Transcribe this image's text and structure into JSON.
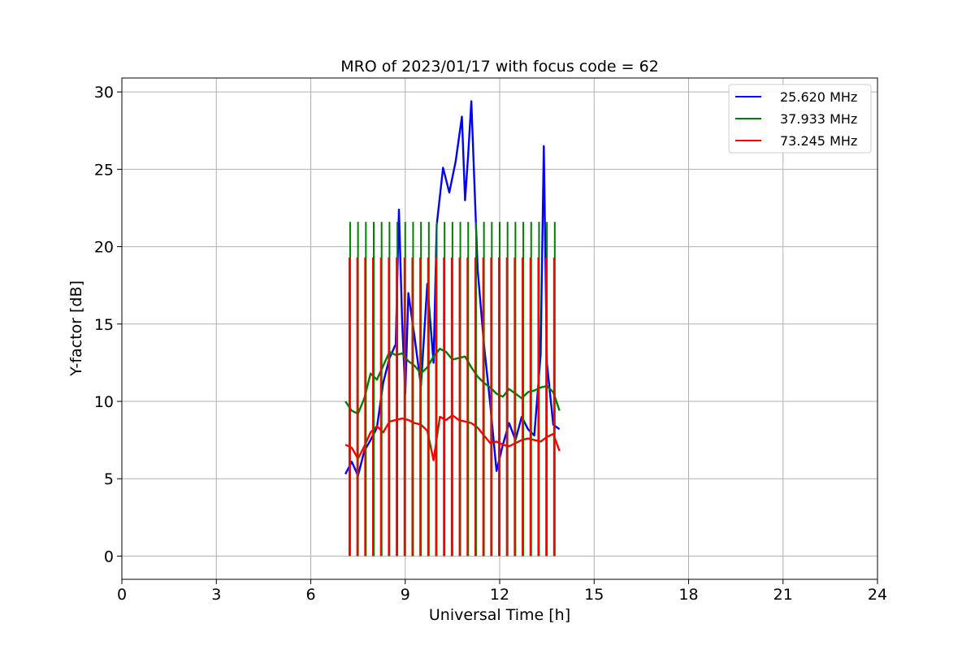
{
  "chart_data": {
    "type": "line",
    "title": "MRO of 2023/01/17 with focus code = 62",
    "xlabel": "Universal Time [h]",
    "ylabel": "Y-factor [dB]",
    "xlim": [
      0,
      24
    ],
    "ylim": [
      -1.5,
      30.9
    ],
    "xticks": [
      0,
      3,
      6,
      9,
      12,
      15,
      18,
      21,
      24
    ],
    "yticks": [
      0,
      5,
      10,
      15,
      20,
      25,
      30
    ],
    "grid": true,
    "legend_position": "top-right",
    "series": [
      {
        "name": "25.620 MHz",
        "color": "#0000ff",
        "x": [
          7.1,
          7.3,
          7.5,
          7.7,
          7.9,
          8.1,
          8.3,
          8.5,
          8.7,
          8.8,
          8.9,
          9.0,
          9.1,
          9.3,
          9.5,
          9.7,
          9.9,
          10.0,
          10.2,
          10.4,
          10.6,
          10.8,
          10.9,
          11.0,
          11.1,
          11.3,
          11.5,
          11.7,
          11.9,
          12.1,
          12.3,
          12.5,
          12.7,
          12.9,
          13.1,
          13.3,
          13.4,
          13.5,
          13.7,
          13.9
        ],
        "y": [
          5.3,
          6.1,
          5.2,
          6.8,
          7.5,
          8.3,
          11.2,
          12.8,
          13.7,
          22.4,
          15.2,
          10.5,
          17.0,
          14.1,
          11.0,
          17.6,
          12.5,
          21.4,
          25.1,
          23.5,
          25.5,
          28.4,
          23.0,
          26.0,
          29.4,
          18.5,
          13.7,
          9.8,
          5.5,
          7.2,
          8.6,
          7.5,
          9.0,
          8.2,
          7.8,
          13.0,
          26.5,
          12.5,
          8.5,
          8.2
        ]
      },
      {
        "name": "37.933 MHz",
        "color": "#008000",
        "x": [
          7.1,
          7.3,
          7.5,
          7.7,
          7.9,
          8.1,
          8.3,
          8.5,
          8.7,
          8.9,
          9.1,
          9.3,
          9.5,
          9.7,
          9.9,
          10.1,
          10.3,
          10.5,
          10.7,
          10.9,
          11.1,
          11.3,
          11.5,
          11.7,
          11.9,
          12.1,
          12.3,
          12.5,
          12.7,
          12.9,
          13.1,
          13.3,
          13.5,
          13.7,
          13.9
        ],
        "y": [
          10.0,
          9.4,
          9.2,
          10.2,
          11.8,
          11.4,
          12.3,
          13.2,
          13.0,
          13.1,
          12.6,
          12.3,
          11.8,
          12.2,
          12.9,
          13.4,
          13.2,
          12.7,
          12.8,
          12.9,
          12.2,
          11.6,
          11.2,
          10.9,
          10.5,
          10.3,
          10.8,
          10.5,
          10.2,
          10.6,
          10.7,
          10.9,
          11.0,
          10.6,
          9.4
        ]
      },
      {
        "name": "73.245 MHz",
        "color": "#ff0000",
        "x": [
          7.1,
          7.3,
          7.5,
          7.7,
          7.9,
          8.1,
          8.3,
          8.5,
          8.7,
          8.9,
          9.1,
          9.3,
          9.5,
          9.7,
          9.9,
          10.1,
          10.3,
          10.5,
          10.7,
          10.9,
          11.1,
          11.3,
          11.5,
          11.7,
          11.9,
          12.1,
          12.3,
          12.5,
          12.7,
          12.9,
          13.1,
          13.3,
          13.5,
          13.7,
          13.9
        ],
        "y": [
          7.2,
          7.0,
          6.3,
          7.1,
          8.0,
          8.4,
          8.0,
          8.7,
          8.8,
          8.9,
          8.8,
          8.6,
          8.5,
          8.1,
          6.2,
          9.0,
          8.8,
          9.1,
          8.8,
          8.7,
          8.6,
          8.3,
          7.8,
          7.3,
          7.4,
          7.2,
          7.1,
          7.3,
          7.5,
          7.6,
          7.5,
          7.4,
          7.7,
          7.9,
          6.8
        ]
      }
    ],
    "calibration_spikes": {
      "times": [
        7.25,
        7.5,
        7.75,
        8.0,
        8.25,
        8.5,
        8.75,
        9.0,
        9.25,
        9.5,
        9.75,
        10.0,
        10.25,
        10.5,
        10.75,
        11.0,
        11.25,
        11.5,
        11.75,
        12.0,
        12.25,
        12.5,
        12.75,
        13.0,
        13.25,
        13.5,
        13.75
      ],
      "green_high": 21.6,
      "red_high": 19.3,
      "low": 0.0
    }
  }
}
